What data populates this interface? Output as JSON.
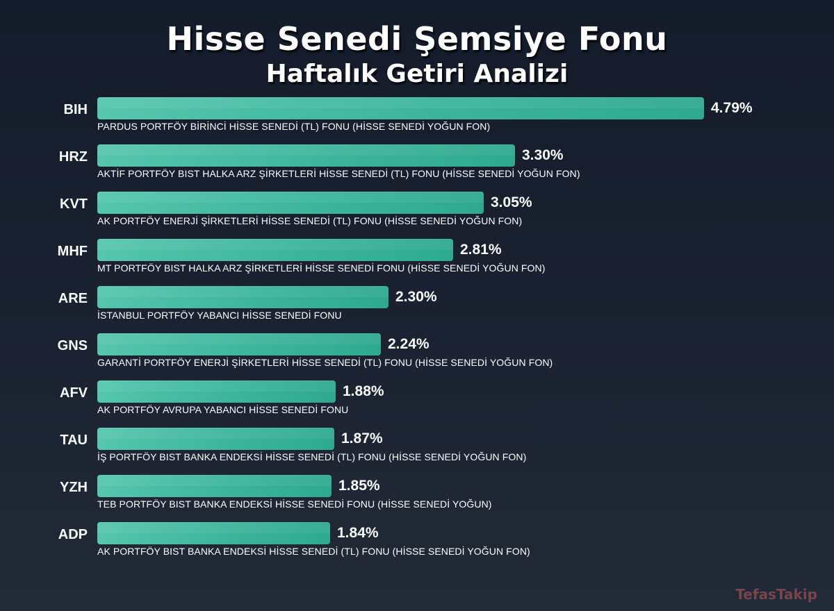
{
  "header": {
    "title": "Hisse Senedi Şemsiye Fonu",
    "subtitle": "Haftalık Getiri Analizi"
  },
  "watermark": "TefasTakip",
  "colors": {
    "background": "#1b2231",
    "bar": "#3db59c",
    "text": "#ffffff",
    "watermark": "#8a4a4e"
  },
  "chart_data": {
    "type": "bar",
    "orientation": "horizontal",
    "title": "Hisse Senedi Şemsiye Fonu",
    "subtitle": "Haftalık Getiri Analizi",
    "unit": "%",
    "xlim": [
      0,
      4.79
    ],
    "grid": false,
    "categories": [
      "BIH",
      "HRZ",
      "KVT",
      "MHF",
      "ARE",
      "GNS",
      "AFV",
      "TAU",
      "YZH",
      "ADP"
    ],
    "values": [
      4.79,
      3.3,
      3.05,
      2.81,
      2.3,
      2.24,
      1.88,
      1.87,
      1.85,
      1.84
    ],
    "value_labels": [
      "4.79%",
      "3.30%",
      "3.05%",
      "2.81%",
      "2.30%",
      "2.24%",
      "1.88%",
      "1.87%",
      "1.85%",
      "1.84%"
    ],
    "fund_names": [
      "PARDUS PORTFÖY BİRİNCİ HİSSE SENEDİ (TL) FONU (HİSSE SENEDİ YOĞUN FON)",
      "AKTİF PORTFÖY BIST HALKA ARZ ŞİRKETLERİ HİSSE SENEDİ (TL) FONU (HİSSE SENEDİ YOĞUN FON)",
      "AK PORTFÖY ENERJİ ŞİRKETLERİ HİSSE SENEDİ (TL) FONU (HİSSE SENEDİ YOĞUN FON)",
      "MT PORTFÖY BIST HALKA ARZ ŞİRKETLERİ HİSSE SENEDİ FONU (HİSSE SENEDİ YOĞUN FON)",
      "İSTANBUL PORTFÖY YABANCI HİSSE SENEDİ FONU",
      "GARANTİ PORTFÖY ENERJİ ŞİRKETLERİ HİSSE SENEDİ (TL) FONU (HİSSE SENEDİ YOĞUN FON)",
      "AK PORTFÖY AVRUPA YABANCI HİSSE SENEDİ FONU",
      "İŞ PORTFÖY BIST BANKA ENDEKSİ HİSSE SENEDİ (TL) FONU (HİSSE SENEDİ YOĞUN FON)",
      "TEB PORTFÖY BIST BANKA ENDEKSİ HİSSE SENEDİ FONU (HİSSE SENEDİ YOĞUN)",
      "AK PORTFÖY BIST BANKA ENDEKSİ HİSSE SENEDİ (TL) FONU (HİSSE SENEDİ YOĞUN FON)"
    ]
  }
}
